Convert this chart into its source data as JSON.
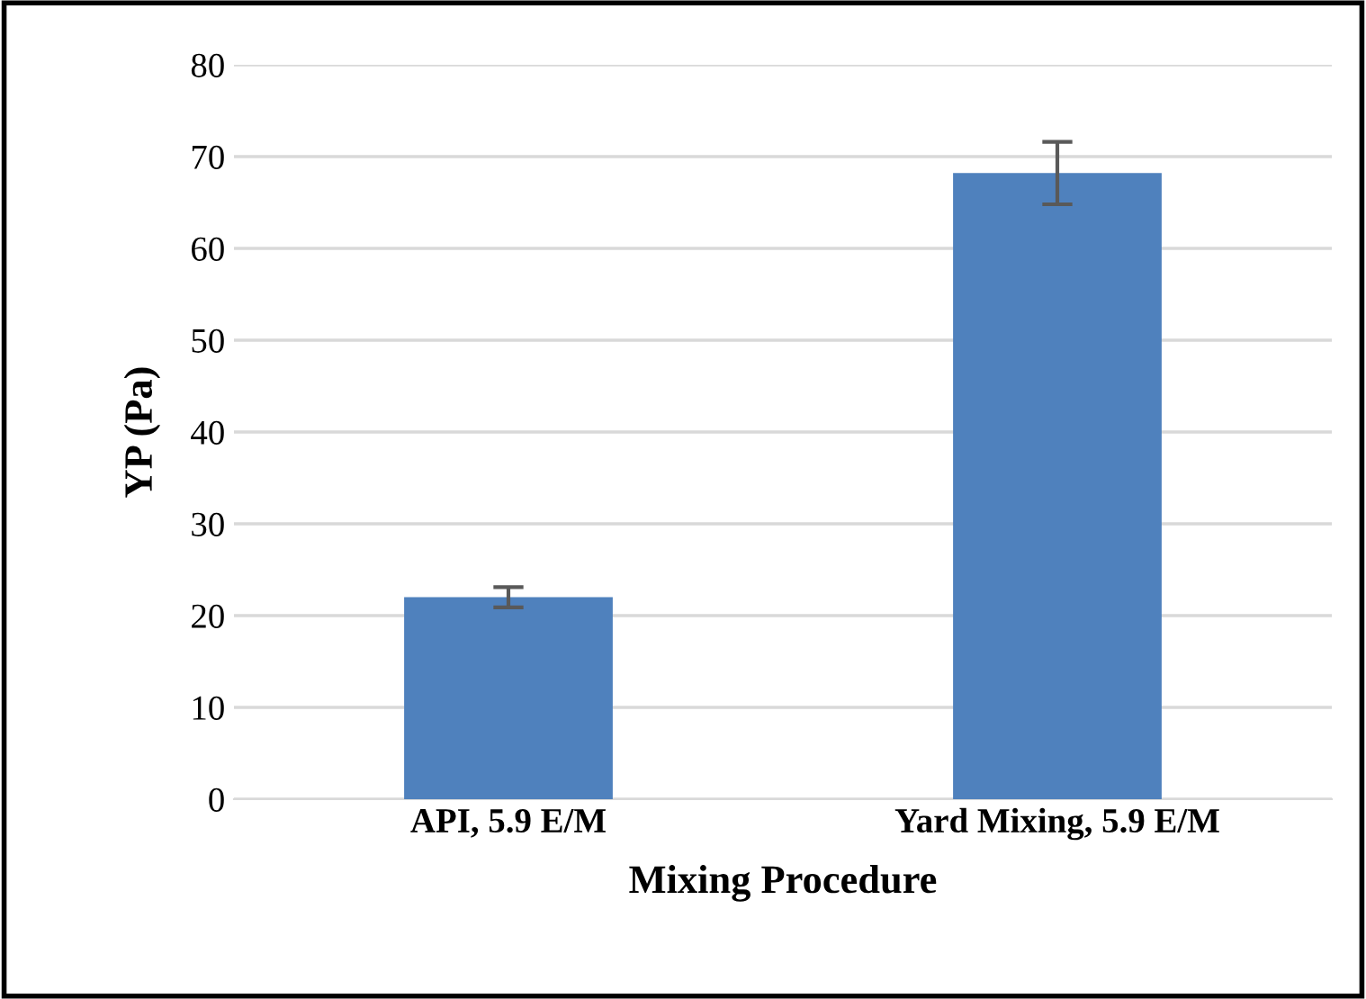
{
  "chart_data": {
    "type": "bar",
    "categories": [
      "API, 5.9 E/M",
      "Yard Mixing, 5.9 E/M"
    ],
    "values": [
      22,
      68.2
    ],
    "errors": [
      1.1,
      3.4
    ],
    "color": "#4f81bd",
    "xlabel": "Mixing Procedure",
    "ylabel": "YP (Pa)",
    "ylim": [
      0,
      80
    ],
    "yticks": [
      0,
      10,
      20,
      30,
      40,
      50,
      60,
      70,
      80
    ],
    "grid": "y",
    "legend": false
  }
}
